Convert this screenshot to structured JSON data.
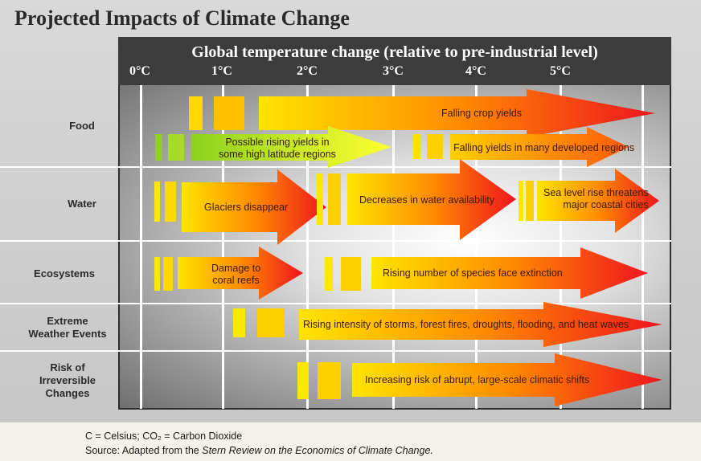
{
  "title": "Projected Impacts of Climate Change",
  "header": {
    "title": "Global temperature change (relative to pre-industrial level)",
    "ticks": [
      "0°C",
      "1°C",
      "2°C",
      "3°C",
      "4°C",
      "5°C"
    ]
  },
  "rows": [
    {
      "label": "Food"
    },
    {
      "label": "Water"
    },
    {
      "label": "Ecosystems"
    },
    {
      "label_lines": [
        "Extreme",
        "Weather Events"
      ]
    },
    {
      "label_lines": [
        "Risk of",
        "Irreversible",
        "Changes"
      ]
    }
  ],
  "arrows": {
    "falling_crop_yields": "Falling crop yields",
    "rising_yields": [
      "Possible rising yields in",
      "some high latitude regions"
    ],
    "falling_yields_developed": "Falling yields in many developed regions",
    "glaciers": "Glaciers disappear",
    "water_availability": "Decreases in water availability",
    "sea_level": [
      "Sea level rise threatens",
      "major coastal cities"
    ],
    "coral": [
      "Damage to",
      "coral reefs"
    ],
    "species": "Rising number of species face extinction",
    "storms": "Rising intensity of storms, forest fires, droughts, flooding, and heat waves",
    "abrupt": "Increasing risk of  abrupt, large-scale climatic shifts"
  },
  "footer": {
    "note_line1": "C = Celsius; CO₂ = Carbon Dioxide",
    "note_line2_prefix": "Source: Adapted from the ",
    "note_line2_italic": "Stern Review on the Economics of Climate Change."
  },
  "colors": {
    "arrow_start_yellow": "#ffe400",
    "arrow_mid_orange": "#ff8c00",
    "arrow_end_red": "#f0141e",
    "arrow_start_green": "#8cd21e"
  }
}
